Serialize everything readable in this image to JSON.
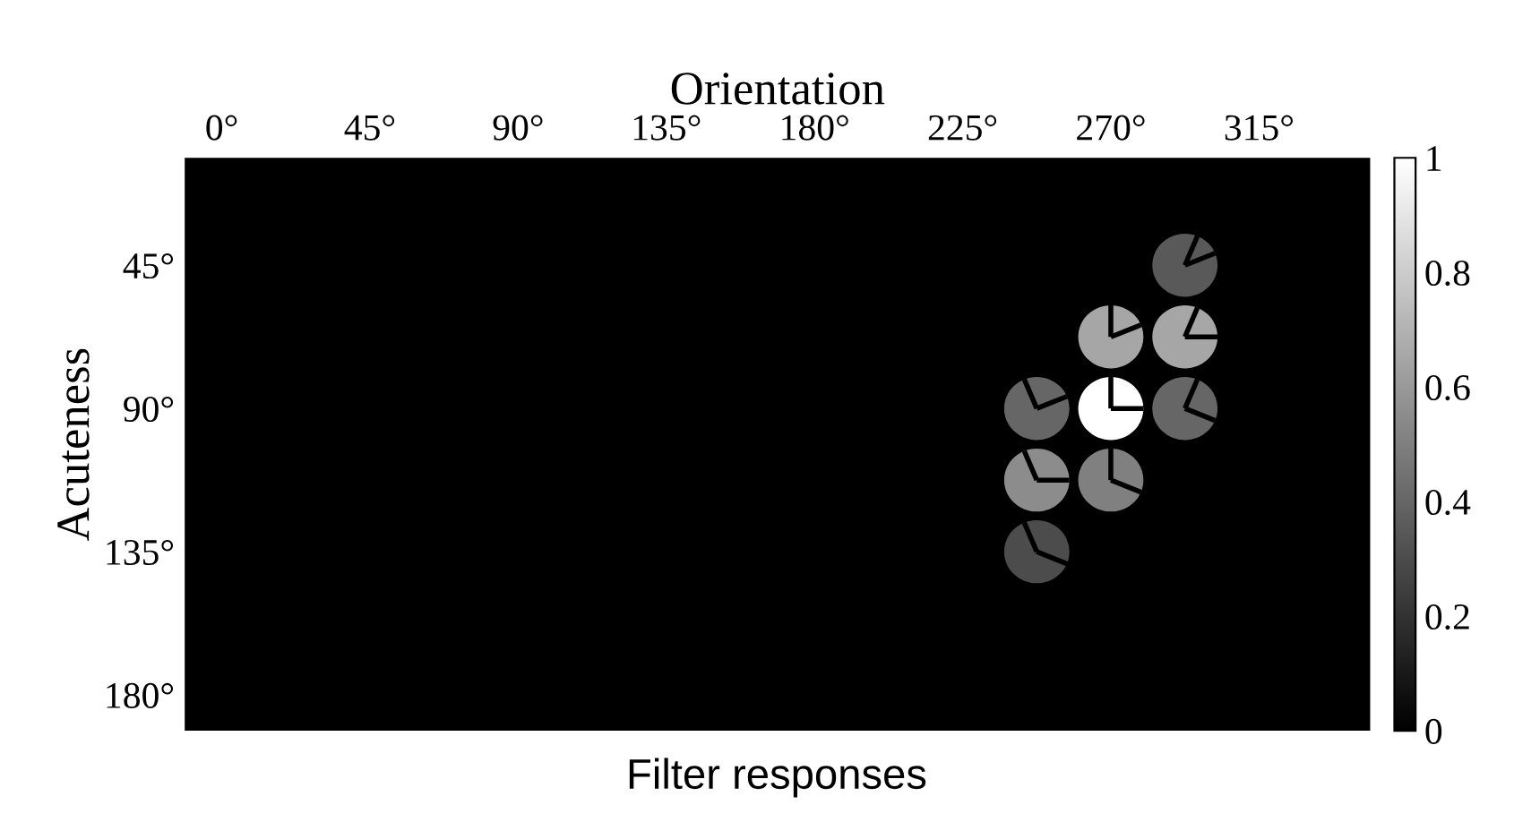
{
  "chart_data": {
    "type": "heatmap",
    "xlabel": "Orientation",
    "ylabel": "Acuteness",
    "annotations": [
      "Filter responses"
    ],
    "categories": [
      "0°",
      null,
      "45°",
      null,
      "90°",
      null,
      "135°",
      null,
      "180°",
      null,
      "225°",
      null,
      "270°",
      null,
      "315°",
      null
    ],
    "y_categories": [
      null,
      "45°",
      null,
      "90°",
      null,
      "135°",
      null,
      "180°"
    ],
    "cells": [
      [
        0,
        0,
        0,
        0,
        0,
        0,
        0,
        0,
        0,
        0,
        0,
        0,
        0,
        0,
        0,
        0
      ],
      [
        0,
        0,
        0,
        0,
        0,
        0,
        0,
        0,
        0,
        0,
        0,
        0,
        0,
        0.35,
        0,
        0
      ],
      [
        0,
        0,
        0,
        0,
        0,
        0,
        0,
        0,
        0,
        0,
        0,
        0,
        0.65,
        0.65,
        0,
        0
      ],
      [
        0,
        0,
        0,
        0,
        0,
        0,
        0,
        0,
        0,
        0,
        0,
        0.4,
        1,
        0.4,
        0,
        0
      ],
      [
        0,
        0,
        0,
        0,
        0,
        0,
        0,
        0,
        0,
        0,
        0,
        0.55,
        0.5,
        0,
        0,
        0
      ],
      [
        0,
        0,
        0,
        0,
        0,
        0,
        0,
        0,
        0,
        0,
        0,
        0.3,
        0,
        0,
        0,
        0
      ],
      [
        0,
        0,
        0,
        0,
        0,
        0,
        0,
        0,
        0,
        0,
        0,
        0,
        0,
        0,
        0,
        0
      ],
      [
        0,
        0,
        0,
        0,
        0,
        0,
        0,
        0,
        0,
        0,
        0,
        0,
        0,
        0,
        0,
        0
      ]
    ],
    "clim": [
      0,
      1
    ],
    "cticks": [
      0,
      0.2,
      0.4,
      0.6,
      0.8,
      1
    ]
  }
}
